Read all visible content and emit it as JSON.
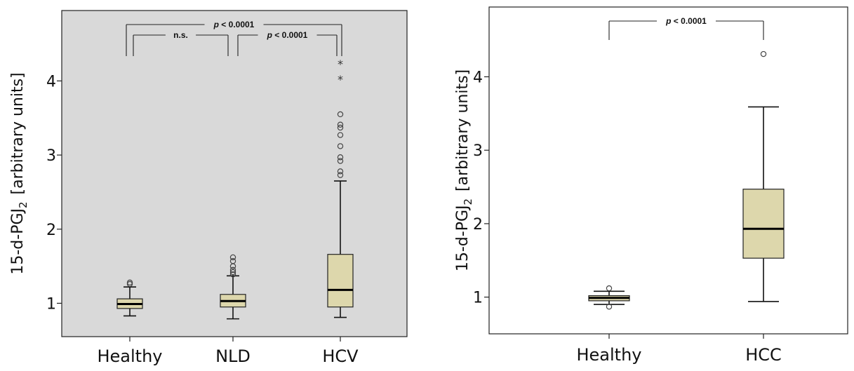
{
  "chart_data": [
    {
      "type": "box",
      "ylabel": "15-d-PGJ",
      "ylabel_sub": "2",
      "ylabel_units": "[arbitrary units]",
      "yticks": [
        1,
        2,
        3,
        4
      ],
      "ylim": [
        0.55,
        4.95
      ],
      "plot_background": "#d9d9d9",
      "box_color": "#ddd7ac",
      "categories": [
        "Healthy",
        "NLD",
        "HCV"
      ],
      "boxes": [
        {
          "name": "Healthy",
          "whislo": 0.83,
          "q1": 0.93,
          "med": 0.99,
          "q3": 1.06,
          "whishi": 1.22,
          "outliers": [
            1.26,
            1.28
          ],
          "extremes": []
        },
        {
          "name": "NLD",
          "whislo": 0.79,
          "q1": 0.95,
          "med": 1.03,
          "q3": 1.12,
          "whishi": 1.37,
          "outliers": [
            1.39,
            1.42,
            1.45,
            1.5,
            1.57,
            1.62
          ],
          "extremes": []
        },
        {
          "name": "HCV",
          "whislo": 0.81,
          "q1": 0.95,
          "med": 1.18,
          "q3": 1.66,
          "whishi": 2.65,
          "outliers": [
            2.73,
            2.78,
            2.92,
            2.97,
            3.12,
            3.27,
            3.37,
            3.41,
            3.55
          ],
          "extremes": [
            4.04,
            4.25
          ]
        }
      ],
      "comparisons": [
        {
          "from": 0,
          "to": 2,
          "label": "p < 0.0001",
          "level": 2
        },
        {
          "from": 0,
          "to": 1,
          "label": "n.s.",
          "level": 1
        },
        {
          "from": 1,
          "to": 2,
          "label": "p < 0.0001",
          "level": 1
        }
      ]
    },
    {
      "type": "box",
      "ylabel": "15-d-PGJ",
      "ylabel_sub": "2",
      "ylabel_units": "[arbitrary units]",
      "yticks": [
        1,
        2,
        3,
        4
      ],
      "ylim": [
        0.5,
        4.95
      ],
      "plot_background": "#ffffff",
      "box_color": "#ddd7ac",
      "categories": [
        "Healthy",
        "HCC"
      ],
      "boxes": [
        {
          "name": "Healthy",
          "whislo": 0.9,
          "q1": 0.95,
          "med": 0.99,
          "q3": 1.02,
          "whishi": 1.08,
          "outliers": [
            0.87,
            1.12
          ],
          "extremes": []
        },
        {
          "name": "HCC",
          "whislo": 0.94,
          "q1": 1.53,
          "med": 1.93,
          "q3": 2.47,
          "whishi": 3.59,
          "outliers": [
            4.31
          ],
          "extremes": []
        }
      ],
      "comparisons": [
        {
          "from": 0,
          "to": 1,
          "label": "p < 0.0001",
          "level": 1
        }
      ]
    }
  ]
}
